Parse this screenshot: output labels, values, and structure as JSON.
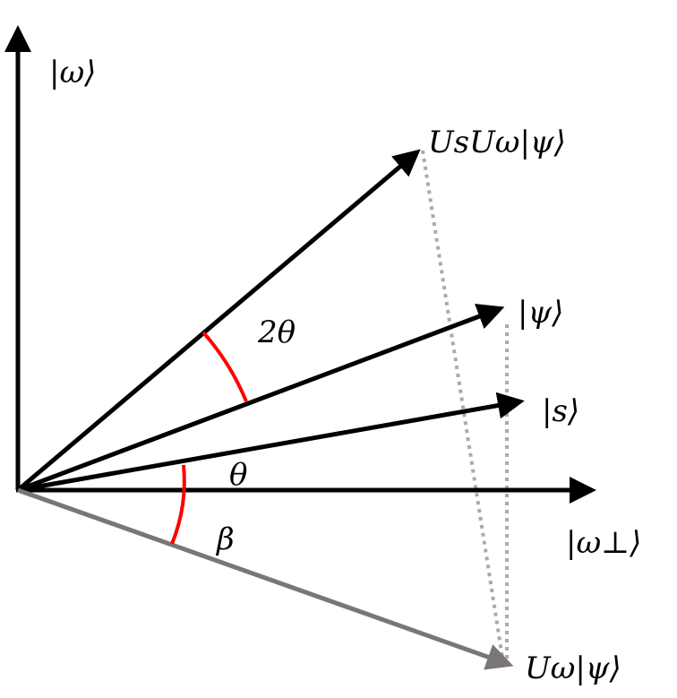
{
  "labels": {
    "omega": "|ω⟩",
    "omega_perp": "|ω⊥⟩",
    "us_uomega_psi": "UsUω|ψ⟩",
    "psi": "|ψ⟩",
    "s": "|s⟩",
    "uomega_psi": "Uω|ψ⟩",
    "two_theta": "2θ",
    "theta": "θ",
    "beta": "β"
  },
  "colors": {
    "vector": "#000000",
    "reflected_vector": "#7a7676",
    "angle_arc": "#ff0000",
    "projection": "#aaaaaa"
  }
}
